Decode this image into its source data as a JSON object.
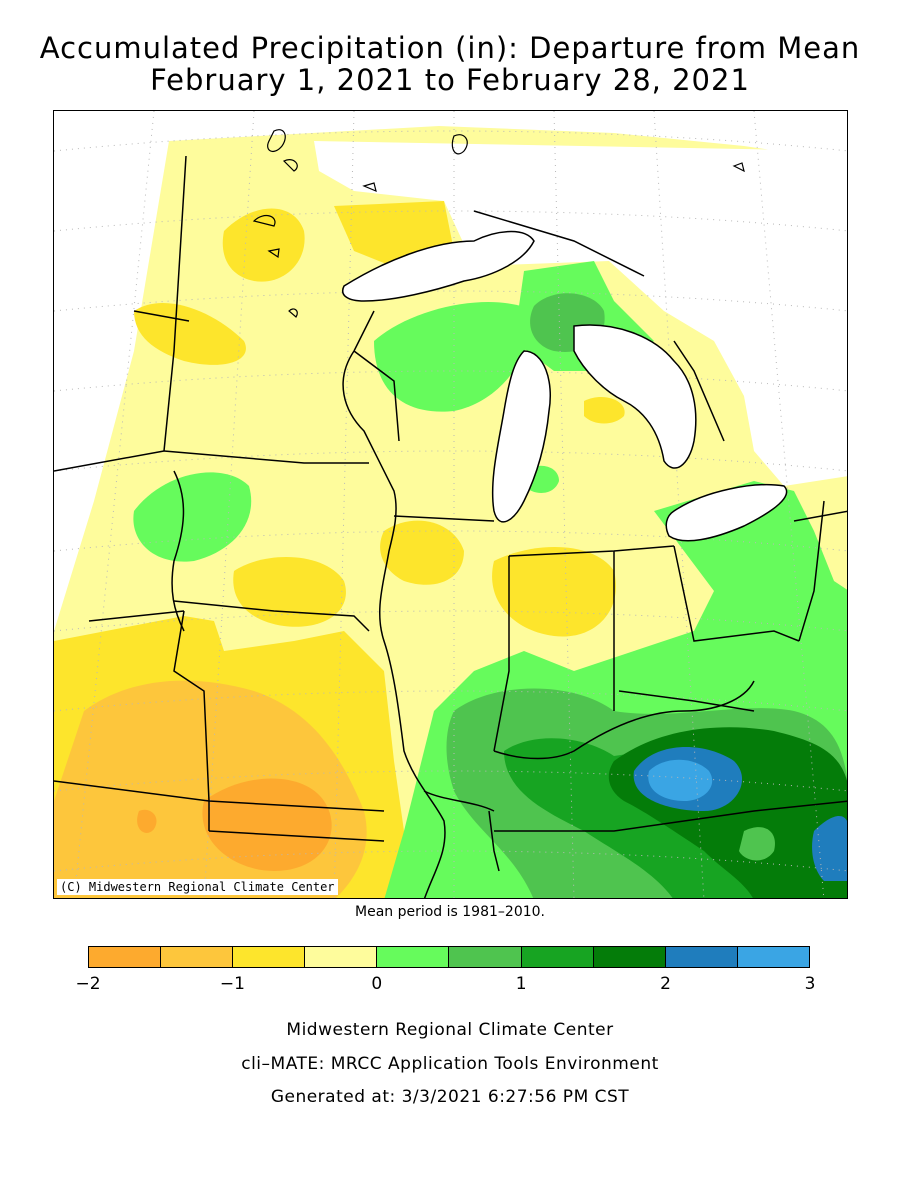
{
  "title_line1": "Accumulated Precipitation (in): Departure from Mean",
  "title_line2": "February 1, 2021 to February 28, 2021",
  "copyright": "(C) Midwestern Regional Climate Center",
  "mean_period": "Mean period is 1981–2010.",
  "legend": {
    "ticks": [
      "−2",
      "−1",
      "0",
      "1",
      "2",
      "3"
    ],
    "colors": [
      "#fdaa2e",
      "#fdc63c",
      "#fde52c",
      "#fefc9c",
      "#66fb5c",
      "#4fc44f",
      "#17a422",
      "#047c09",
      "#1f7dbd",
      "#3aa5e4"
    ]
  },
  "footer": {
    "line1": "Midwestern Regional Climate Center",
    "line2": "cli–MATE: MRCC Application Tools Environment",
    "line3": "Generated at: 3/3/2021 6:27:56 PM CST"
  }
}
